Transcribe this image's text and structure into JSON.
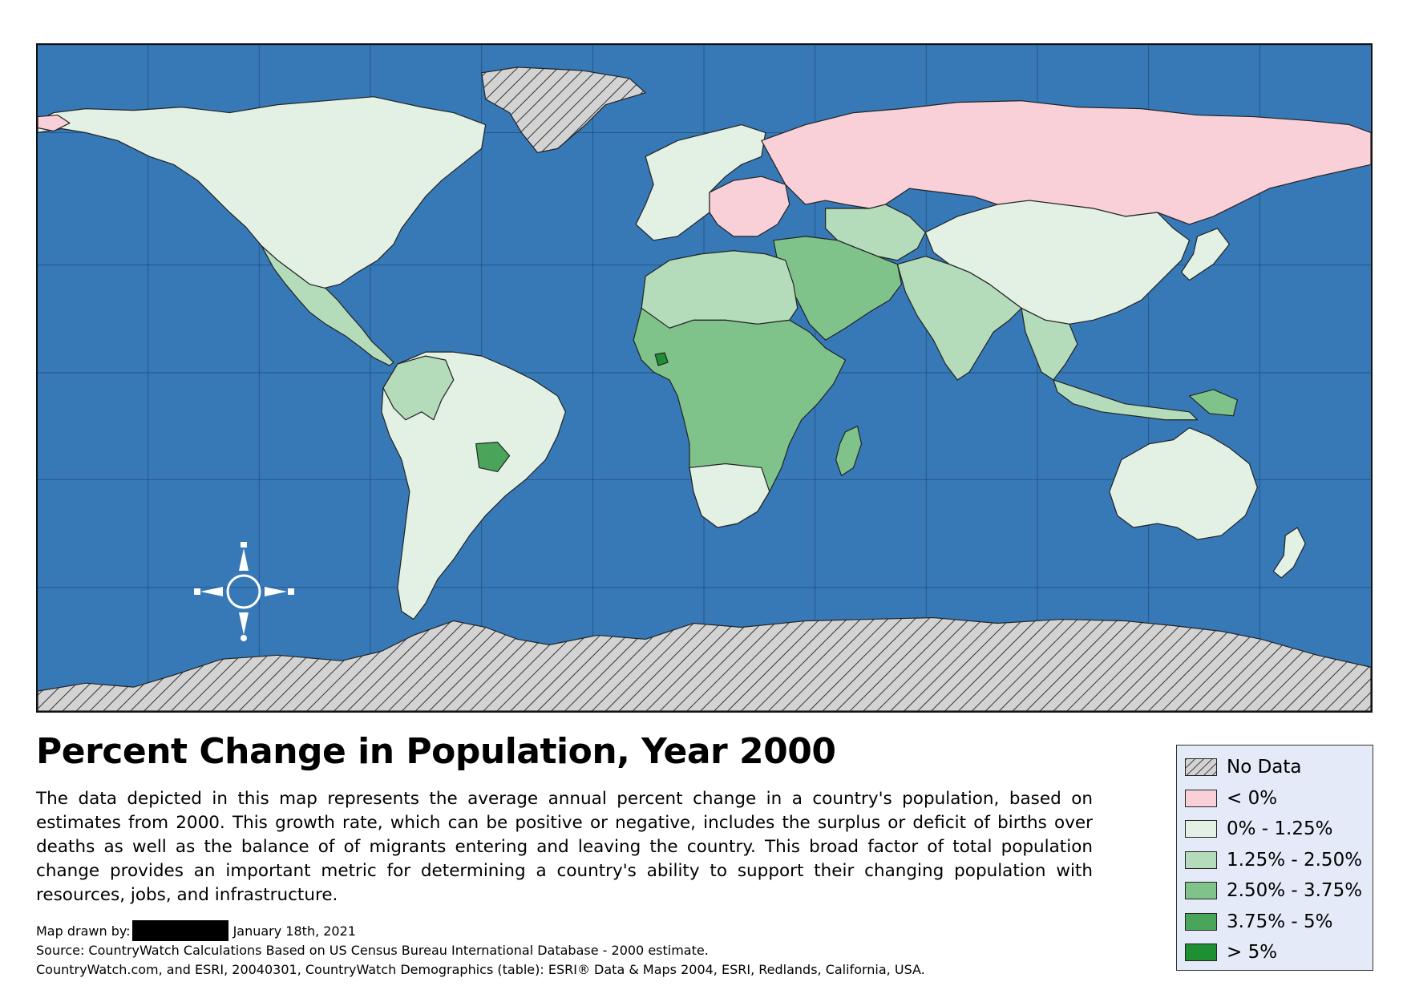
{
  "title": "Percent Change in Population, Year 2000",
  "description": "The data depicted in this map represents the average annual percent change in a country's population, based on estimates from 2000. This growth rate, which can be positive or negative, includes the surplus or deficit of births over deaths as well as the balance of of migrants entering and leaving the country. This broad factor of total population change provides an important metric for determining a country's ability to support their changing population with resources, jobs, and infrastructure.",
  "credits": {
    "drawn_by_label": "Map drawn by:",
    "date": "January 18th, 2021",
    "source_line": "Source: CountryWatch Calculations Based on US Census Bureau International Database - 2000 estimate.",
    "citation_line": "CountryWatch.com, and ESRI, 20040301, CountryWatch Demographics (table): ESRI® Data & Maps 2004, ESRI, Redlands, California, USA."
  },
  "legend": {
    "items": [
      {
        "label": "No Data",
        "color": "#d3d3d3",
        "pattern": "hatch"
      },
      {
        "label": "< 0%",
        "color": "#f9d0d8"
      },
      {
        "label": "0% - 1.25%",
        "color": "#e3f1e5"
      },
      {
        "label": "1.25% - 2.50%",
        "color": "#b4dbba"
      },
      {
        "label": "2.50% - 3.75%",
        "color": "#7fc38b"
      },
      {
        "label": "3.75% - 5%",
        "color": "#4aa55a"
      },
      {
        "label": "> 5%",
        "color": "#1f8f33"
      }
    ]
  },
  "map": {
    "ocean_color": "#3779b7",
    "icons": [
      "compass-rose-icon"
    ]
  }
}
